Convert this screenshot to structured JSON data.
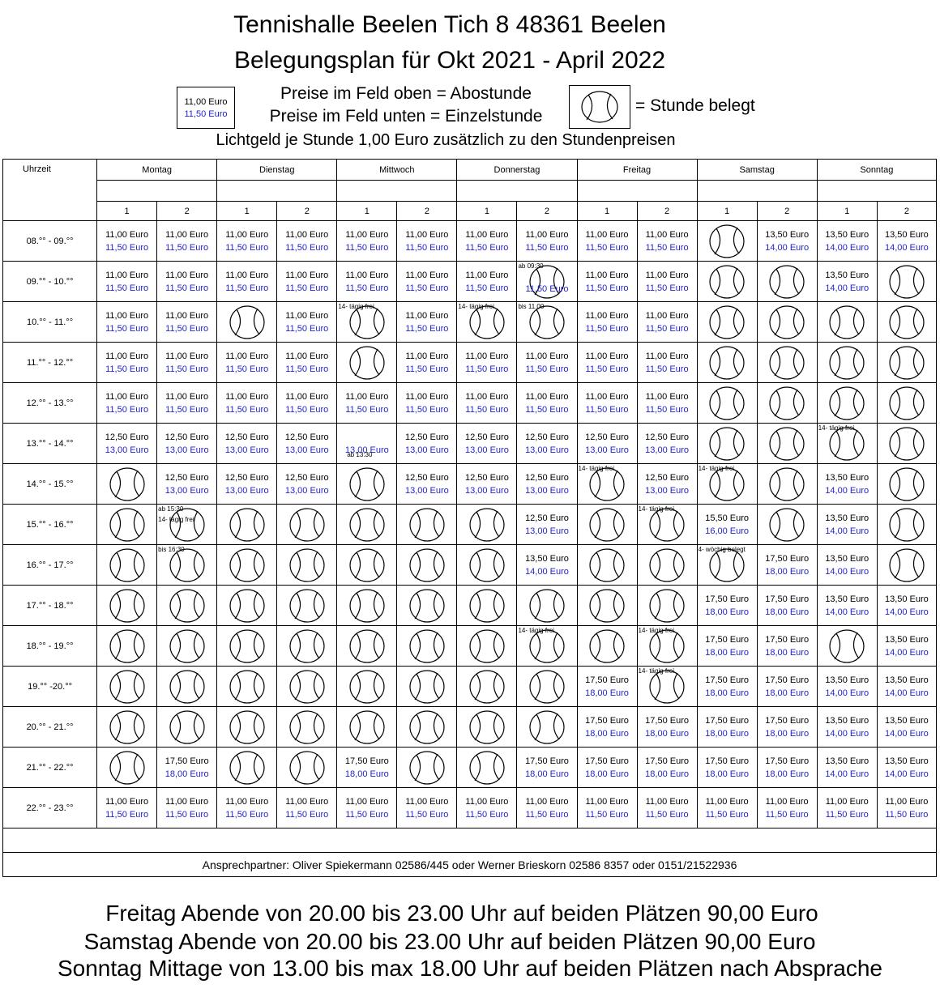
{
  "header": {
    "title_line1": "Tennishalle Beelen Tich 8 48361 Beelen",
    "title_line2": "Belegungsplan für Okt 2021 - April 2022"
  },
  "legend": {
    "box_abo": "11,00 Euro",
    "box_einzel": "11,50 Euro",
    "text_line1": "Preise im Feld oben = Abostunde",
    "text_line2": "Preise im Feld unten = Einzelstunde",
    "ball_icon": "tennis-ball-icon",
    "belegt_text": "= Stunde belegt",
    "lichtgeld": "Lichtgeld je Stunde 1,00 Euro zusätzlich zu den Stundenpreisen"
  },
  "colors": {
    "einzel_price": "#2222cc"
  },
  "table": {
    "uhrzeit_label": "Uhrzeit",
    "days": [
      "Montag",
      "Dienstag",
      "Mittwoch",
      "Donnerstag",
      "Freitag",
      "Samstag",
      "Sonntag"
    ],
    "court_numbers": [
      "1",
      "2"
    ],
    "rows": [
      {
        "time": "08.°° - 09.°°",
        "cells": [
          {
            "a": "11,00 Euro",
            "e": "11,50 Euro"
          },
          {
            "a": "11,00 Euro",
            "e": "11,50 Euro"
          },
          {
            "a": "11,00 Euro",
            "e": "11,50 Euro"
          },
          {
            "a": "11,00 Euro",
            "e": "11,50 Euro"
          },
          {
            "a": "11,00 Euro",
            "e": "11,50 Euro"
          },
          {
            "a": "11,00 Euro",
            "e": "11,50 Euro"
          },
          {
            "a": "11,00 Euro",
            "e": "11,50 Euro"
          },
          {
            "a": "11,00 Euro",
            "e": "11,50 Euro"
          },
          {
            "a": "11,00 Euro",
            "e": "11,50 Euro"
          },
          {
            "a": "11,00 Euro",
            "e": "11,50 Euro"
          },
          {
            "ball": true
          },
          {
            "a": "13,50 Euro",
            "e": "14,00 Euro"
          },
          {
            "a": "13,50 Euro",
            "e": "14,00 Euro"
          },
          {
            "a": "13,50 Euro",
            "e": "14,00 Euro"
          }
        ]
      },
      {
        "time": "09.°° - 10.°°",
        "cells": [
          {
            "a": "11,00 Euro",
            "e": "11,50 Euro"
          },
          {
            "a": "11,00 Euro",
            "e": "11,50 Euro"
          },
          {
            "a": "11,00 Euro",
            "e": "11,50 Euro"
          },
          {
            "a": "11,00 Euro",
            "e": "11,50 Euro"
          },
          {
            "a": "11,00 Euro",
            "e": "11,50 Euro"
          },
          {
            "a": "11,00 Euro",
            "e": "11,50 Euro"
          },
          {
            "a": "11,00 Euro",
            "e": "11,50 Euro"
          },
          {
            "ball": true,
            "note": "ab  09:30",
            "e": "11,50 Euro"
          },
          {
            "a": "11,00 Euro",
            "e": "11,50 Euro"
          },
          {
            "a": "11,00 Euro",
            "e": "11,50 Euro"
          },
          {
            "ball": true
          },
          {
            "ball": true
          },
          {
            "a": "13,50 Euro",
            "e": "14,00 Euro"
          },
          {
            "ball": true
          }
        ]
      },
      {
        "time": "10.°° - 11.°°",
        "cells": [
          {
            "a": "11,00 Euro",
            "e": "11,50 Euro"
          },
          {
            "a": "11,00 Euro",
            "e": "11,50 Euro"
          },
          {
            "ball": true
          },
          {
            "a": "11,00 Euro",
            "e": "11,50 Euro"
          },
          {
            "ball": true,
            "note": "14- tägig frei"
          },
          {
            "a": "11,00 Euro",
            "e": "11,50 Euro"
          },
          {
            "ball": true,
            "note": "14- tägig frei"
          },
          {
            "ball": true,
            "note": "bis  11.00"
          },
          {
            "a": "11,00 Euro",
            "e": "11,50 Euro"
          },
          {
            "a": "11,00 Euro",
            "e": "11,50 Euro"
          },
          {
            "ball": true
          },
          {
            "ball": true
          },
          {
            "ball": true
          },
          {
            "ball": true
          }
        ]
      },
      {
        "time": "11.°° - 12.°°",
        "cells": [
          {
            "a": "11,00 Euro",
            "e": "11,50 Euro"
          },
          {
            "a": "11,00 Euro",
            "e": "11,50 Euro"
          },
          {
            "a": "11,00 Euro",
            "e": "11,50 Euro"
          },
          {
            "a": "11,00 Euro",
            "e": "11,50 Euro"
          },
          {
            "ball": true
          },
          {
            "a": "11,00 Euro",
            "e": "11,50 Euro"
          },
          {
            "a": "11,00 Euro",
            "e": "11,50 Euro"
          },
          {
            "a": "11,00 Euro",
            "e": "11,50 Euro"
          },
          {
            "a": "11,00 Euro",
            "e": "11,50 Euro"
          },
          {
            "a": "11,00 Euro",
            "e": "11,50 Euro"
          },
          {
            "ball": true
          },
          {
            "ball": true
          },
          {
            "ball": true
          },
          {
            "ball": true
          }
        ]
      },
      {
        "time": "12.°° - 13.°°",
        "cells": [
          {
            "a": "11,00 Euro",
            "e": "11,50 Euro"
          },
          {
            "a": "11,00 Euro",
            "e": "11,50 Euro"
          },
          {
            "a": "11,00 Euro",
            "e": "11,50 Euro"
          },
          {
            "a": "11,00 Euro",
            "e": "11,50 Euro"
          },
          {
            "a": "11,00 Euro",
            "e": "11,50 Euro"
          },
          {
            "a": "11,00 Euro",
            "e": "11,50 Euro"
          },
          {
            "a": "11,00 Euro",
            "e": "11,50 Euro"
          },
          {
            "a": "11,00 Euro",
            "e": "11,50 Euro"
          },
          {
            "a": "11,00 Euro",
            "e": "11,50 Euro"
          },
          {
            "a": "11,00 Euro",
            "e": "11,50 Euro"
          },
          {
            "ball": true
          },
          {
            "ball": true
          },
          {
            "ball": true
          },
          {
            "ball": true
          }
        ]
      },
      {
        "time": "13.°° - 14.°°",
        "cells": [
          {
            "a": "12,50 Euro",
            "e": "13,00 Euro"
          },
          {
            "a": "12,50 Euro",
            "e": "13,00 Euro"
          },
          {
            "a": "12,50 Euro",
            "e": "13,00 Euro"
          },
          {
            "a": "12,50 Euro",
            "e": "13,00 Euro"
          },
          {
            "a": "",
            "e": "13,00 Euro",
            "note2": "ab 13:30"
          },
          {
            "a": "12,50 Euro",
            "e": "13,00 Euro"
          },
          {
            "a": "12,50 Euro",
            "e": "13,00 Euro"
          },
          {
            "a": "12,50 Euro",
            "e": "13,00 Euro"
          },
          {
            "a": "12,50 Euro",
            "e": "13,00 Euro"
          },
          {
            "a": "12,50 Euro",
            "e": "13,00 Euro"
          },
          {
            "ball": true
          },
          {
            "ball": true
          },
          {
            "ball": true,
            "note": "14- tägig frei"
          },
          {
            "ball": true
          }
        ]
      },
      {
        "time": "14.°° - 15.°°",
        "cells": [
          {
            "ball": true
          },
          {
            "a": "12,50 Euro",
            "e": "13,00 Euro"
          },
          {
            "a": "12,50 Euro",
            "e": "13,00 Euro"
          },
          {
            "a": "12,50 Euro",
            "e": "13,00 Euro"
          },
          {
            "ball": true
          },
          {
            "a": "12,50 Euro",
            "e": "13,00 Euro"
          },
          {
            "a": "12,50 Euro",
            "e": "13,00 Euro"
          },
          {
            "a": "12,50 Euro",
            "e": "13,00 Euro"
          },
          {
            "ball": true,
            "note": "14- tägig frei"
          },
          {
            "a": "12,50 Euro",
            "e": "13,00 Euro"
          },
          {
            "ball": true,
            "note": "14- tägig frei"
          },
          {
            "ball": true
          },
          {
            "a": "13,50 Euro",
            "e": "14,00 Euro"
          },
          {
            "ball": true
          }
        ]
      },
      {
        "time": "15.°° - 16.°°",
        "cells": [
          {
            "ball": true
          },
          {
            "ball": true,
            "note": "ab  15:30",
            "note_b": "14- tägig frei"
          },
          {
            "ball": true
          },
          {
            "ball": true
          },
          {
            "ball": true
          },
          {
            "ball": true
          },
          {
            "ball": true
          },
          {
            "a": "12,50 Euro",
            "e": "13,00 Euro"
          },
          {
            "ball": true
          },
          {
            "ball": true,
            "note": "14- tägig frei"
          },
          {
            "a": "15,50 Euro",
            "e": "16,00 Euro"
          },
          {
            "ball": true
          },
          {
            "a": "13,50 Euro",
            "e": "14,00 Euro"
          },
          {
            "ball": true
          }
        ]
      },
      {
        "time": "16.°° - 17.°°",
        "cells": [
          {
            "ball": true
          },
          {
            "ball": true,
            "note": "bis  16:30"
          },
          {
            "ball": true
          },
          {
            "ball": true
          },
          {
            "ball": true
          },
          {
            "ball": true
          },
          {
            "ball": true
          },
          {
            "a": "13,50 Euro",
            "e": "14,00 Euro"
          },
          {
            "ball": true
          },
          {
            "ball": true
          },
          {
            "ball": true,
            "note": "4- wöchig belegt"
          },
          {
            "a": "17,50 Euro",
            "e": "18,00 Euro"
          },
          {
            "a": "13,50 Euro",
            "e": "14,00 Euro"
          },
          {
            "ball": true
          }
        ]
      },
      {
        "time": "17.°° - 18.°°",
        "cells": [
          {
            "ball": true
          },
          {
            "ball": true
          },
          {
            "ball": true
          },
          {
            "ball": true
          },
          {
            "ball": true
          },
          {
            "ball": true
          },
          {
            "ball": true
          },
          {
            "ball": true
          },
          {
            "ball": true
          },
          {
            "ball": true
          },
          {
            "a": "17,50 Euro",
            "e": "18,00 Euro"
          },
          {
            "a": "17,50 Euro",
            "e": "18,00 Euro"
          },
          {
            "a": "13,50 Euro",
            "e": "14,00 Euro"
          },
          {
            "a": "13,50 Euro",
            "e": "14,00 Euro"
          }
        ]
      },
      {
        "time": "18.°° - 19.°°",
        "cells": [
          {
            "ball": true
          },
          {
            "ball": true
          },
          {
            "ball": true
          },
          {
            "ball": true
          },
          {
            "ball": true
          },
          {
            "ball": true
          },
          {
            "ball": true
          },
          {
            "ball": true,
            "note": "14- tägig frei"
          },
          {
            "ball": true
          },
          {
            "ball": true,
            "note": "14- tägig frei"
          },
          {
            "a": "17,50 Euro",
            "e": "18,00 Euro"
          },
          {
            "a": "17,50 Euro",
            "e": "18,00 Euro"
          },
          {
            "ball": true
          },
          {
            "a": "13,50 Euro",
            "e": "14,00 Euro"
          }
        ]
      },
      {
        "time": "19.°° -20.°°",
        "cells": [
          {
            "ball": true
          },
          {
            "ball": true
          },
          {
            "ball": true
          },
          {
            "ball": true
          },
          {
            "ball": true
          },
          {
            "ball": true
          },
          {
            "ball": true
          },
          {
            "ball": true
          },
          {
            "a": "17,50 Euro",
            "e": "18,00 Euro"
          },
          {
            "ball": true,
            "note": "14- tägig frei"
          },
          {
            "a": "17,50 Euro",
            "e": "18,00 Euro"
          },
          {
            "a": "17,50 Euro",
            "e": "18,00 Euro"
          },
          {
            "a": "13,50 Euro",
            "e": "14,00 Euro"
          },
          {
            "a": "13,50 Euro",
            "e": "14,00 Euro"
          }
        ]
      },
      {
        "time": "20.°° - 21.°°",
        "cells": [
          {
            "ball": true
          },
          {
            "ball": true
          },
          {
            "ball": true
          },
          {
            "ball": true
          },
          {
            "ball": true
          },
          {
            "ball": true
          },
          {
            "ball": true
          },
          {
            "ball": true
          },
          {
            "a": "17,50 Euro",
            "e": "18,00 Euro"
          },
          {
            "a": "17,50 Euro",
            "e": "18,00 Euro"
          },
          {
            "a": "17,50 Euro",
            "e": "18,00 Euro"
          },
          {
            "a": "17,50 Euro",
            "e": "18,00 Euro"
          },
          {
            "a": "13,50 Euro",
            "e": "14,00 Euro"
          },
          {
            "a": "13,50 Euro",
            "e": "14,00 Euro"
          }
        ]
      },
      {
        "time": "21.°° - 22.°°",
        "cells": [
          {
            "ball": true
          },
          {
            "a": "17,50 Euro",
            "e": "18,00 Euro"
          },
          {
            "ball": true
          },
          {
            "ball": true
          },
          {
            "a": "17,50 Euro",
            "e": "18,00 Euro"
          },
          {
            "ball": true
          },
          {
            "ball": true
          },
          {
            "a": "17,50 Euro",
            "e": "18,00 Euro"
          },
          {
            "a": "17,50 Euro",
            "e": "18,00 Euro"
          },
          {
            "a": "17,50 Euro",
            "e": "18,00 Euro"
          },
          {
            "a": "17,50 Euro",
            "e": "18,00 Euro"
          },
          {
            "a": "17,50 Euro",
            "e": "18,00 Euro"
          },
          {
            "a": "13,50 Euro",
            "e": "14,00 Euro"
          },
          {
            "a": "13,50 Euro",
            "e": "14,00 Euro"
          }
        ]
      },
      {
        "time": "22.°° - 23.°°",
        "cells": [
          {
            "a": "11,00 Euro",
            "e": "11,50 Euro"
          },
          {
            "a": "11,00 Euro",
            "e": "11,50 Euro"
          },
          {
            "a": "11,00 Euro",
            "e": "11,50 Euro"
          },
          {
            "a": "11,00 Euro",
            "e": "11,50 Euro"
          },
          {
            "a": "11,00 Euro",
            "e": "11,50 Euro"
          },
          {
            "a": "11,00 Euro",
            "e": "11,50 Euro"
          },
          {
            "a": "11,00 Euro",
            "e": "11,50 Euro"
          },
          {
            "a": "11,00 Euro",
            "e": "11,50 Euro"
          },
          {
            "a": "11,00 Euro",
            "e": "11,50 Euro"
          },
          {
            "a": "11,00 Euro",
            "e": "11,50 Euro"
          },
          {
            "a": "11,00 Euro",
            "e": "11,50 Euro"
          },
          {
            "a": "11,00 Euro",
            "e": "11,50 Euro"
          },
          {
            "a": "11,00 Euro",
            "e": "11,50 Euro"
          },
          {
            "a": "11,00 Euro",
            "e": "11,50 Euro"
          }
        ]
      }
    ],
    "contact": "Ansprechpartner: Oliver Spiekermann 02586/445  oder Werner Brieskorn 02586 8357 oder 0151/21522936"
  },
  "footer": {
    "line1": "Freitag Abende von 20.00 bis 23.00 Uhr auf beiden Plätzen 90,00 Euro",
    "line2": "Samstag Abende von 20.00 bis 23.00 Uhr auf beiden Plätzen 90,00 Euro",
    "line3": "Sonntag Mittage von 13.00 bis max 18.00 Uhr auf beiden Plätzen nach Absprache"
  }
}
